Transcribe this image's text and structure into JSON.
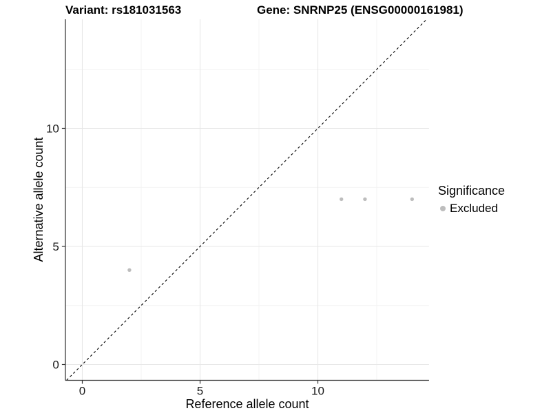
{
  "chart_data": {
    "type": "scatter",
    "title_variant": "Variant: rs181031563",
    "title_gene": "Gene: SNRNP25 (ENSG00000161981)",
    "xlabel": "Reference allele count",
    "ylabel": "Alternative allele count",
    "x_axis": {
      "ticks": [
        0,
        5,
        10
      ],
      "tick_labels": [
        "0",
        "5",
        "10"
      ],
      "minor_ticks": [
        2.5,
        7.5,
        12.5
      ],
      "lim": [
        -0.72,
        14.72
      ]
    },
    "y_axis": {
      "ticks": [
        0,
        5,
        10
      ],
      "tick_labels": [
        "0",
        "5",
        "10"
      ],
      "minor_ticks": [
        2.5,
        7.5,
        12.5
      ],
      "lim": [
        -0.67,
        14.62
      ]
    },
    "points": [
      {
        "x": 2,
        "y": 4
      },
      {
        "x": 11,
        "y": 7
      },
      {
        "x": 12,
        "y": 7
      },
      {
        "x": 14,
        "y": 7
      }
    ],
    "reference_line": {
      "slope": 1,
      "intercept": 0,
      "style": "dashed",
      "color": "#000000"
    },
    "legend": {
      "title": "Significance",
      "entries": [
        {
          "label": "Excluded",
          "color": "#bdbdbd"
        }
      ],
      "position": "right"
    },
    "grid": true,
    "colors": {
      "background": "#ffffff",
      "axis": "#333333",
      "tick_text": "#1a1a1a",
      "grid_major": "#e7e7e7",
      "grid_minor": "#f2f2f2",
      "point": "#bdbdbd"
    }
  }
}
